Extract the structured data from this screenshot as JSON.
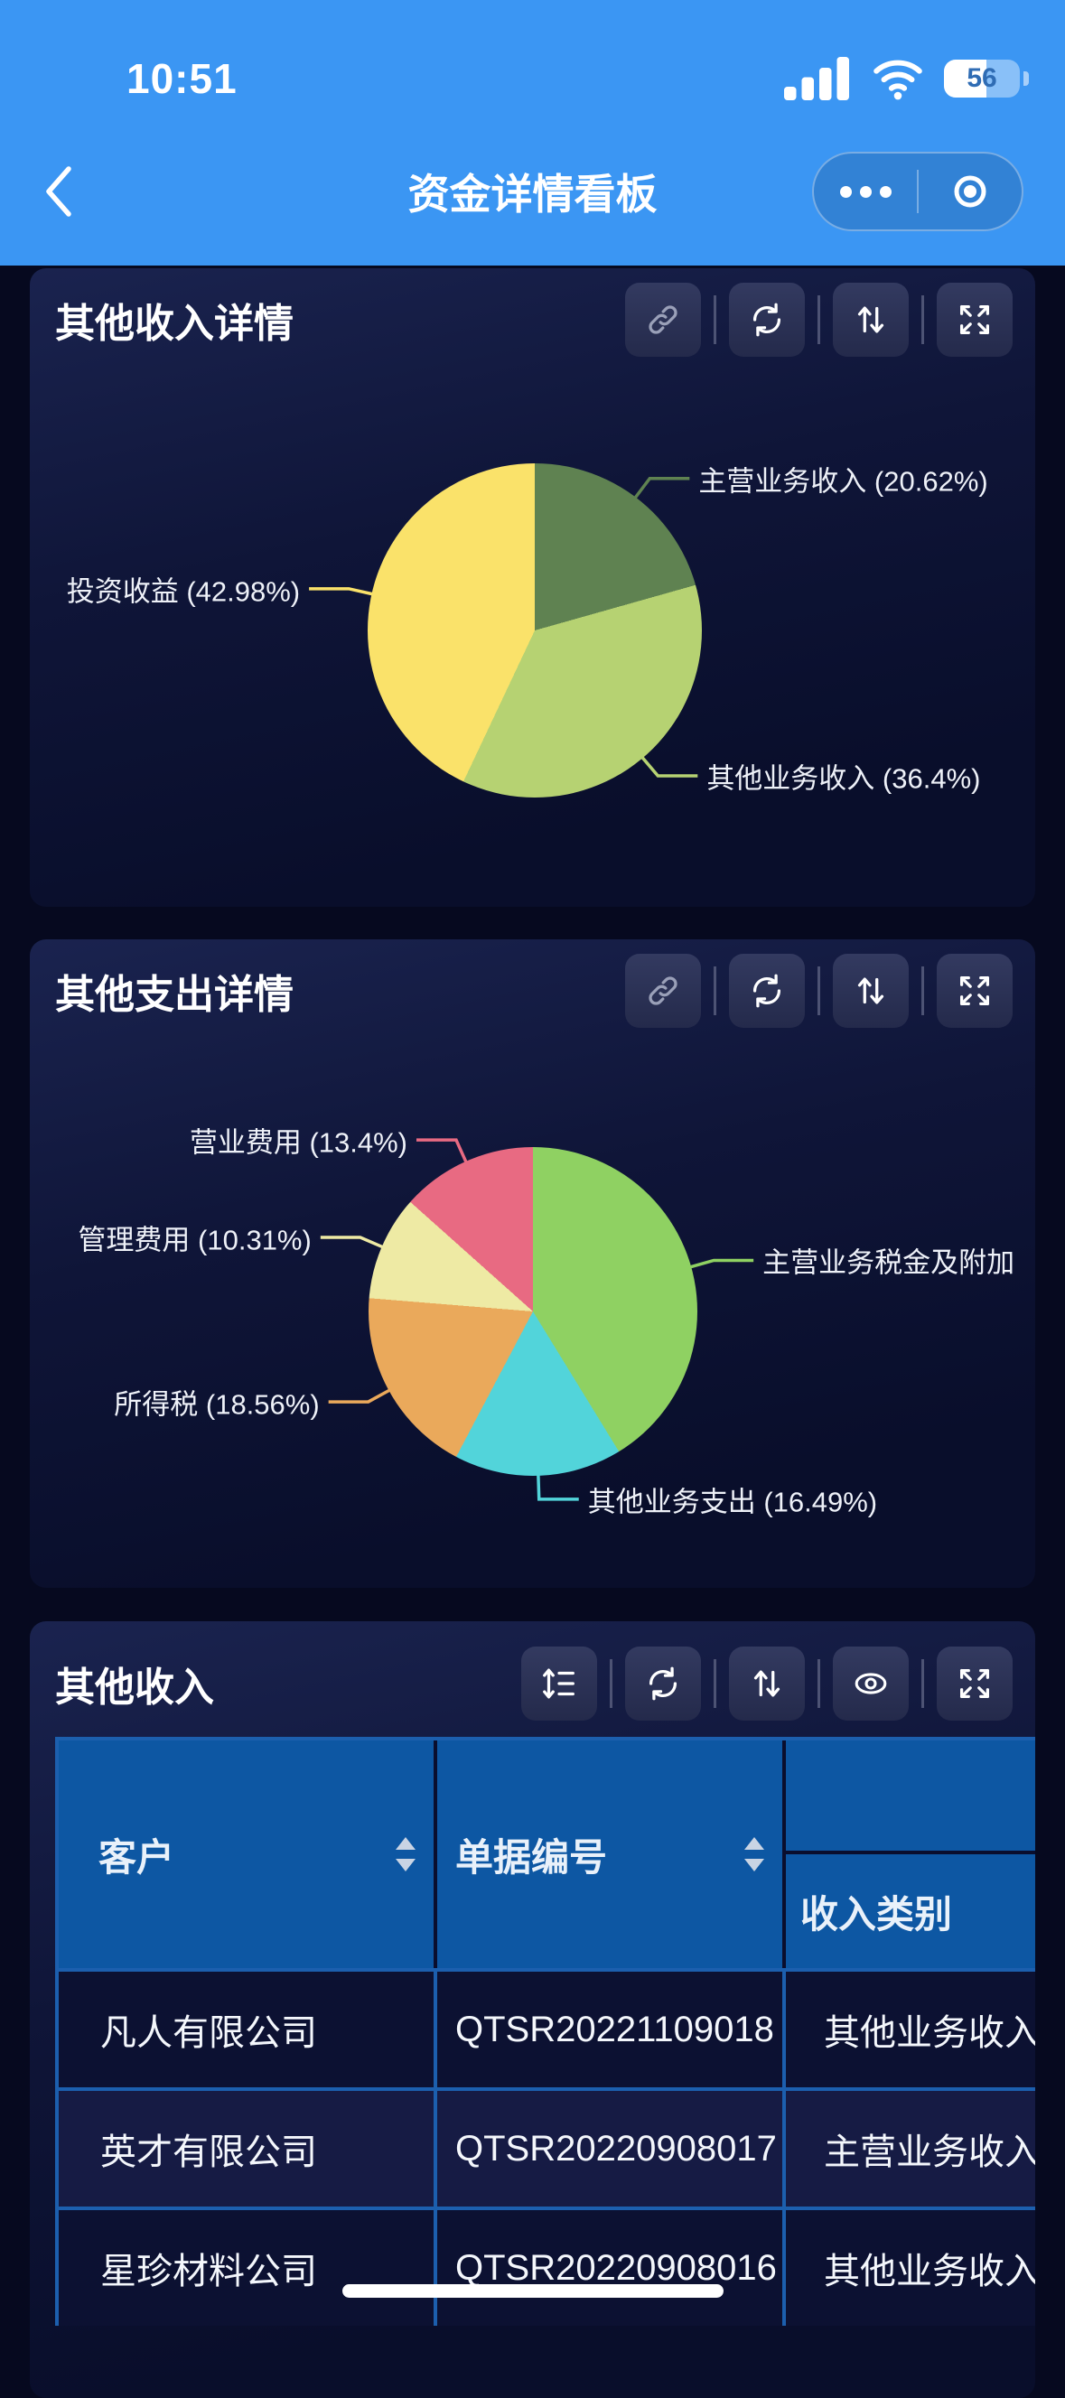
{
  "status_bar": {
    "time": "10:51",
    "battery_level": "56"
  },
  "nav_bar": {
    "title": "资金详情看板"
  },
  "colors": {
    "nav_blue": "#3b96f3",
    "page_bg": "#06091f",
    "table_header_blue": "#0d57a3",
    "table_grid_blue": "#1c5fae",
    "row_bg_dark": "#0c1132",
    "row_bg_light": "#161b44"
  },
  "cards": [
    {
      "title": "其他收入详情",
      "toolbar": [
        "link",
        "refresh",
        "sort",
        "fullscreen"
      ]
    },
    {
      "title": "其他支出详情",
      "toolbar": [
        "link",
        "refresh",
        "sort",
        "fullscreen"
      ]
    },
    {
      "title": "其他收入",
      "toolbar": [
        "row-height",
        "refresh",
        "sort",
        "visibility",
        "fullscreen"
      ]
    }
  ],
  "chart_data": [
    {
      "type": "pie",
      "title": "其他收入详情",
      "start_angle_deg": 0,
      "direction": "clockwise",
      "legend_position": "callout-labels",
      "slices": [
        {
          "name": "主营业务收入",
          "value": 20.62,
          "color": "#5f8251",
          "label_text": "主营业务收入 (20.62%)"
        },
        {
          "name": "其他业务收入",
          "value": 36.4,
          "color": "#b6d272",
          "label_text": "其他业务收入 (36.4%)"
        },
        {
          "name": "投资收益",
          "value": 42.98,
          "color": "#fae26a",
          "label_text": "投资收益 (42.98%)"
        }
      ]
    },
    {
      "type": "pie",
      "title": "其他支出详情",
      "start_angle_deg": 0,
      "direction": "clockwise",
      "legend_position": "callout-labels",
      "slices": [
        {
          "name": "主营业务税金及附加",
          "value": 41.24,
          "color": "#8fd162",
          "label_text": "主营业务税金及附加",
          "label_clipped_at_edge": true
        },
        {
          "name": "其他业务支出",
          "value": 16.49,
          "color": "#52d4da",
          "label_text": "其他业务支出 (16.49%)"
        },
        {
          "name": "所得税",
          "value": 18.56,
          "color": "#eaa95b",
          "label_text": "所得税 (18.56%)"
        },
        {
          "name": "管理费用",
          "value": 10.31,
          "color": "#eeeaa4",
          "label_text": "管理费用 (10.31%)"
        },
        {
          "name": "营业费用",
          "value": 13.4,
          "color": "#e86a82",
          "label_text": "营业费用 (13.4%)"
        }
      ]
    }
  ],
  "table": {
    "columns": {
      "customer": "客户",
      "doc_no": "单据编号",
      "income_type": "收入类别"
    },
    "rows": [
      {
        "customer": "凡人有限公司",
        "doc_no": "QTSR20221109018",
        "income_type": "其他业务收入"
      },
      {
        "customer": "英才有限公司",
        "doc_no": "QTSR20220908017",
        "income_type": "主营业务收入"
      },
      {
        "customer": "星珍材料公司",
        "doc_no": "QTSR20220908016",
        "income_type": "其他业务收入"
      }
    ]
  }
}
